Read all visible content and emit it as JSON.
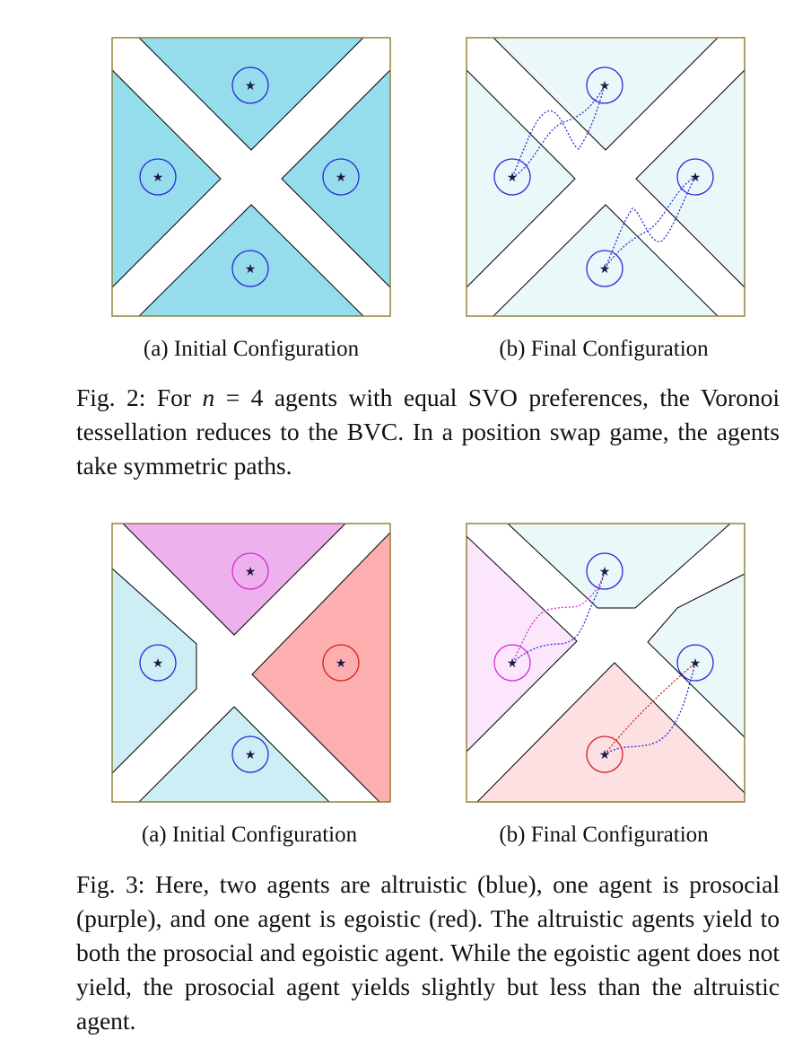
{
  "figure2": {
    "subcaption_a": "(a) Initial Configuration",
    "subcaption_b": "(b) Final Configuration",
    "caption_label": "Fig. 2:",
    "caption_pre": " For ",
    "caption_var": "n",
    "caption_eq": " = 4",
    "caption_post": " agents with equal SVO preferences, the Voronoi tessellation reduces to the BVC. In a position swap game, the agents take symmetric paths."
  },
  "figure3": {
    "subcaption_a": "(a) Initial Configuration",
    "subcaption_b": "(b) Final Configuration",
    "caption_label": "Fig. 3:",
    "caption_text": " Here, two agents are altruistic (blue), one agent is prosocial (purple), and one agent is egoistic (red). The altruistic agents yield to both the prosocial and egoistic agent. While the egoistic agent does not yield, the prosocial agent yields slightly but less than the altruistic agent."
  },
  "colors": {
    "cell_blue": "#95dcec",
    "cell_light_cyan": "#eaf8f9",
    "cell_light_blue": "#cdeef5",
    "cell_purple": "#edb2ee",
    "cell_red": "#fdafb0",
    "cell_light_pink": "#fbe6fb",
    "cell_light_red": "#fde0e2",
    "agent_blue": "#2a2ad8",
    "agent_magenta": "#d62ad6",
    "agent_red": "#d52020",
    "frame": "#8a7a2a",
    "star": "#1c1c4a"
  }
}
